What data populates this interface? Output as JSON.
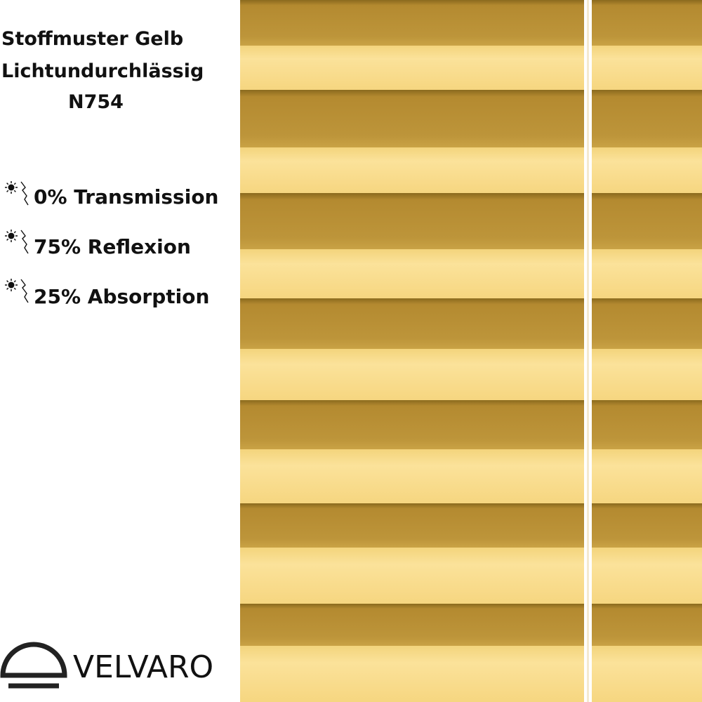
{
  "title": [
    "Stoffmuster Gelb",
    "Lichtundurchlässig",
    "N754"
  ],
  "features": [
    "0% Transmission",
    "75% Reflexion",
    "25% Absorption"
  ],
  "brand": "VELVARO"
}
